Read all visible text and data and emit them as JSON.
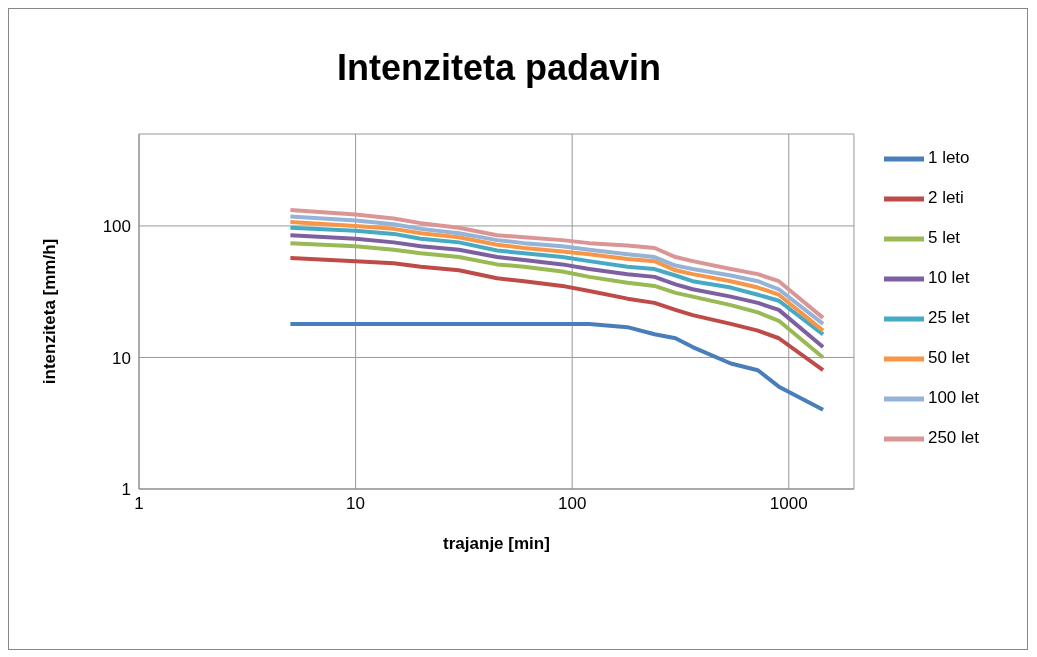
{
  "chart_data": {
    "type": "line",
    "title": "Intenziteta padavin",
    "xlabel": "trajanje [min]",
    "ylabel": "intenziteta [mm/h]",
    "log": "xy",
    "grid": true,
    "legend": "right",
    "marker": "none",
    "line_style": "solid",
    "x": [
      5,
      10,
      15,
      20,
      30,
      45,
      60,
      90,
      120,
      180,
      240,
      300,
      360,
      540,
      720,
      900,
      1440
    ],
    "xlim": [
      1,
      2000
    ],
    "xticks": [
      1,
      10,
      100,
      1000
    ],
    "ylim": [
      1,
      500
    ],
    "yticks": [
      1,
      10,
      100
    ],
    "series": [
      {
        "name": "1 leto",
        "color": "#4a7ebb",
        "values": [
          18,
          18,
          18,
          18,
          18,
          18,
          18,
          18,
          18,
          17,
          15,
          14,
          12,
          9,
          8,
          6,
          4
        ]
      },
      {
        "name": "2 leti",
        "color": "#be4b48",
        "values": [
          57,
          54,
          52,
          49,
          46,
          40,
          38,
          35,
          32,
          28,
          26,
          23,
          21,
          18,
          16,
          14,
          8
        ]
      },
      {
        "name": "5 let",
        "color": "#98b954",
        "values": [
          74,
          70,
          66,
          62,
          58,
          51,
          49,
          45,
          41,
          37,
          35,
          31,
          29,
          25,
          22,
          19,
          10
        ]
      },
      {
        "name": "10 let",
        "color": "#7d60a0",
        "values": [
          85,
          80,
          75,
          70,
          66,
          58,
          55,
          51,
          47,
          43,
          41,
          36,
          33,
          29,
          26,
          23,
          12
        ]
      },
      {
        "name": "25 let",
        "color": "#46aac5",
        "values": [
          97,
          92,
          87,
          80,
          75,
          65,
          62,
          58,
          54,
          49,
          47,
          42,
          38,
          34,
          30,
          27,
          15
        ]
      },
      {
        "name": "50 let",
        "color": "#f79646",
        "values": [
          107,
          100,
          95,
          88,
          82,
          72,
          68,
          64,
          61,
          56,
          54,
          46,
          43,
          38,
          34,
          30,
          16
        ]
      },
      {
        "name": "100 let",
        "color": "#95b3d7",
        "values": [
          118,
          110,
          103,
          95,
          88,
          78,
          74,
          70,
          66,
          61,
          58,
          50,
          47,
          42,
          38,
          33,
          18
        ]
      },
      {
        "name": "250 let",
        "color": "#d99694",
        "values": [
          132,
          122,
          114,
          105,
          97,
          85,
          82,
          78,
          74,
          71,
          68,
          58,
          54,
          47,
          43,
          38,
          20
        ]
      }
    ]
  }
}
